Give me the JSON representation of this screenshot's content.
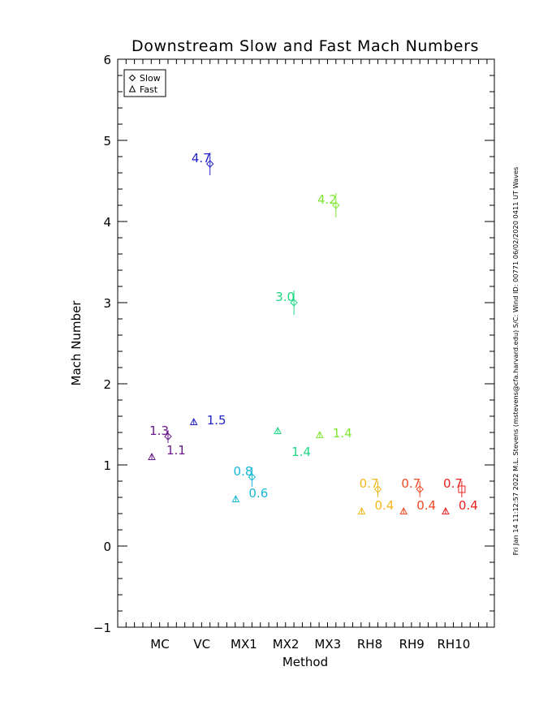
{
  "chart_data": {
    "type": "scatter",
    "title": "Downstream Slow and Fast Mach Numbers",
    "xlabel": "Method",
    "ylabel": "Mach Number",
    "ylim": [
      -1,
      6
    ],
    "yticks": [
      "−1",
      "0",
      "1",
      "2",
      "3",
      "4",
      "5",
      "6"
    ],
    "yticks_values": [
      -1,
      0,
      1,
      2,
      3,
      4,
      5,
      6
    ],
    "categories": [
      "MC",
      "VC",
      "MX1",
      "MX2",
      "MX3",
      "RH8",
      "RH9",
      "RH10"
    ],
    "legend": {
      "position": "top-left",
      "entries": [
        {
          "label": "Slow",
          "marker": "diamond"
        },
        {
          "label": "Fast",
          "marker": "triangle"
        }
      ]
    },
    "series": [
      {
        "name": "Slow",
        "marker": "diamond",
        "points": [
          {
            "category": "MC",
            "y": 1.35,
            "err": 0.08,
            "label": "1.3",
            "color": "#6a1a8a"
          },
          {
            "category": "VC",
            "y": 4.71,
            "err": 0.14,
            "label": "4.7",
            "color": "#2323c8"
          },
          {
            "category": "MX1",
            "y": 0.85,
            "err": 0.12,
            "label": "0.8",
            "color": "#18b8d8"
          },
          {
            "category": "MX2",
            "y": 3.0,
            "err": 0.15,
            "label": "3.0",
            "color": "#1ed882"
          },
          {
            "category": "MX3",
            "y": 4.2,
            "err": 0.15,
            "label": "4.2",
            "color": "#7ee832"
          },
          {
            "category": "RH8",
            "y": 0.7,
            "err": 0.1,
            "label": "0.7",
            "color": "#f2b81c"
          },
          {
            "category": "RH9",
            "y": 0.7,
            "err": 0.1,
            "label": "0.7",
            "color": "#f04a24"
          },
          {
            "category": "RH10",
            "y": 0.7,
            "err": 0.1,
            "label": "0.7",
            "color": "#e82020",
            "marker": "square"
          }
        ]
      },
      {
        "name": "Fast",
        "marker": "triangle",
        "points": [
          {
            "category": "MC",
            "y": 1.1,
            "err": 0.03,
            "label": "1.1",
            "color": "#6a1a8a"
          },
          {
            "category": "VC",
            "y": 1.53,
            "err": 0.03,
            "label": "1.5",
            "color": "#2323c8"
          },
          {
            "category": "MX1",
            "y": 0.58,
            "err": 0.04,
            "label": "0.6",
            "color": "#18b8d8"
          },
          {
            "category": "MX2",
            "y": 1.42,
            "err": 0.03,
            "label": "1.4",
            "color": "#1ed882"
          },
          {
            "category": "MX3",
            "y": 1.37,
            "err": 0.03,
            "label": "1.4",
            "color": "#7ee832"
          },
          {
            "category": "RH8",
            "y": 0.43,
            "err": 0.04,
            "label": "0.4",
            "color": "#f2b81c"
          },
          {
            "category": "RH9",
            "y": 0.43,
            "err": 0.04,
            "label": "0.4",
            "color": "#f04a24"
          },
          {
            "category": "RH10",
            "y": 0.43,
            "err": 0.04,
            "label": "0.4",
            "color": "#e82020"
          }
        ]
      }
    ]
  },
  "side_note": "Fri Jan 14 11:12:57 2022  M.L. Stevens (mstevens@cfa.harvard.edu)  S/C: Wind ID: 00771 06/02/2020  0411 UT Waves",
  "colors": {
    "axis": "#000000",
    "background": "#ffffff"
  }
}
